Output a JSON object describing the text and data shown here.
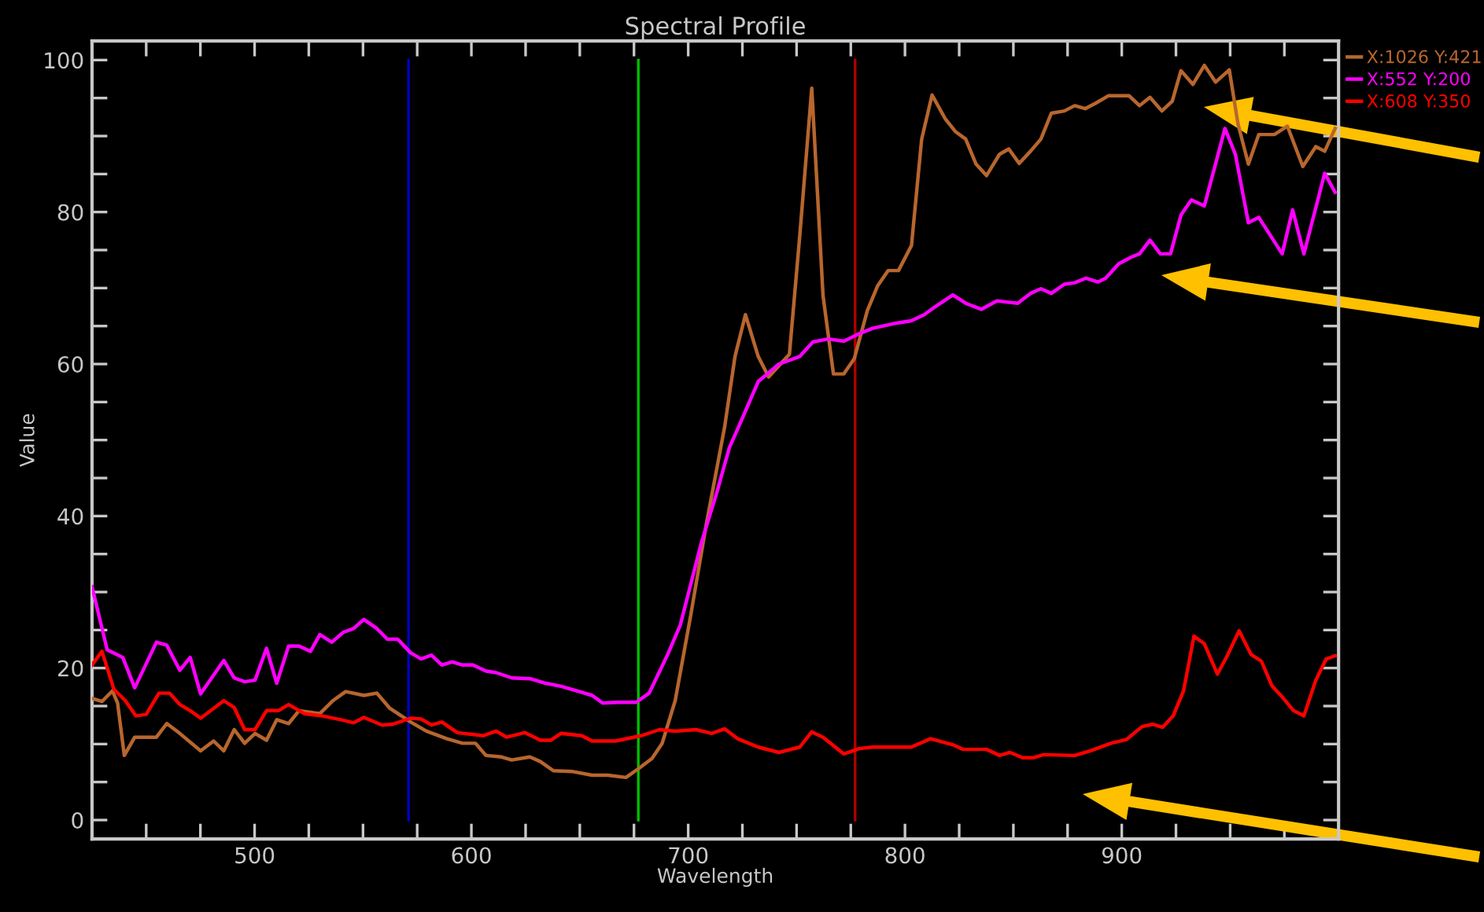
{
  "chart_data": {
    "type": "line",
    "title": "Spectral Profile",
    "xlabel": "Wavelength",
    "ylabel": "Value",
    "xlim": [
      425,
      1000
    ],
    "ylim": [
      -2.5,
      102.5
    ],
    "xticks": [
      {
        "value": 450,
        "label": null
      },
      {
        "value": 475,
        "label": null
      },
      500,
      {
        "value": 525,
        "label": null
      },
      {
        "value": 550,
        "label": null
      },
      {
        "value": 575,
        "label": null
      },
      600,
      {
        "value": 625,
        "label": null
      },
      {
        "value": 650,
        "label": null
      },
      {
        "value": 675,
        "label": null
      },
      700,
      {
        "value": 725,
        "label": null
      },
      {
        "value": 750,
        "label": null
      },
      {
        "value": 775,
        "label": null
      },
      800,
      {
        "value": 825,
        "label": null
      },
      {
        "value": 850,
        "label": null
      },
      {
        "value": 875,
        "label": null
      },
      900,
      {
        "value": 925,
        "label": null
      },
      {
        "value": 950,
        "label": null
      },
      {
        "value": 975,
        "label": null
      }
    ],
    "yticks": [
      0,
      {
        "value": 5,
        "label": null
      },
      {
        "value": 10,
        "label": null
      },
      {
        "value": 15,
        "label": null
      },
      20,
      {
        "value": 25,
        "label": null
      },
      {
        "value": 30,
        "label": null
      },
      {
        "value": 35,
        "label": null
      },
      40,
      {
        "value": 45,
        "label": null
      },
      {
        "value": 50,
        "label": null
      },
      {
        "value": 55,
        "label": null
      },
      60,
      {
        "value": 65,
        "label": null
      },
      {
        "value": 70,
        "label": null
      },
      {
        "value": 75,
        "label": null
      },
      80,
      {
        "value": 85,
        "label": null
      },
      {
        "value": 90,
        "label": null
      },
      {
        "value": 95,
        "label": null
      },
      100
    ],
    "grid": false,
    "legend": "top right",
    "marker": "none",
    "line_style": "solid",
    "ref_lines": [
      {
        "axis": "x",
        "value": 571,
        "color": "#0000c0"
      },
      {
        "axis": "x",
        "value": 677,
        "color": "#00c000"
      },
      {
        "axis": "x",
        "value": 777,
        "color": "#b00000"
      }
    ],
    "series": [
      {
        "name": "X:1026 Y:421",
        "color": "#b8662e",
        "x": [
          425,
          429.6,
          434.4,
          436.8,
          439.9,
          444.7,
          454.7,
          459.5,
          465.5,
          475.1,
          481.1,
          485.8,
          490.6,
          495.4,
          500.2,
          505.5,
          510.2,
          515.7,
          520.5,
          530.1,
          536.1,
          542,
          550.4,
          556.4,
          562.4,
          572,
          579.2,
          588.7,
          595.9,
          601.9,
          606.7,
          613.9,
          618.6,
          627,
          631.8,
          637.8,
          646.2,
          655.7,
          662.9,
          671.3,
          676.8,
          683.3,
          688,
          694,
          701.2,
          708.4,
          716.8,
          721.6,
          726.4,
          732.3,
          737.1,
          746.7,
          751.5,
          757,
          762.2,
          767,
          771.8,
          776.6,
          782.6,
          787.4,
          792.2,
          797,
          803,
          807.7,
          812.5,
          818.5,
          823.2,
          828,
          832.8,
          837.6,
          843.6,
          847.9,
          852.7,
          857.9,
          862.7,
          867.5,
          873.5,
          878.3,
          883.1,
          887.8,
          893.8,
          903.4,
          908.2,
          913,
          918.5,
          923.3,
          927.3,
          932.8,
          938.1,
          943.3,
          949.6,
          953.6,
          958.4,
          963.2,
          970.4,
          976.4,
          983.5,
          989.5,
          993.6,
          998.4
        ],
        "values": [
          16.0,
          15.6,
          17.0,
          15.4,
          8.5,
          10.9,
          10.9,
          12.7,
          11.4,
          9.1,
          10.4,
          9.1,
          11.9,
          10.1,
          11.4,
          10.5,
          13.2,
          12.7,
          14.4,
          14.0,
          15.7,
          16.9,
          16.4,
          16.7,
          14.7,
          12.9,
          11.7,
          10.7,
          10.1,
          10.1,
          8.5,
          8.3,
          7.9,
          8.3,
          7.7,
          6.5,
          6.4,
          5.9,
          5.9,
          5.6,
          6.7,
          8.1,
          10.1,
          15.7,
          27.0,
          39.0,
          51.7,
          61.0,
          66.5,
          61.0,
          58.3,
          61.3,
          77.0,
          96.3,
          69.0,
          58.7,
          58.7,
          60.7,
          67.0,
          70.3,
          72.3,
          72.3,
          75.6,
          89.6,
          95.4,
          92.3,
          90.6,
          89.6,
          86.3,
          84.8,
          87.6,
          88.3,
          86.4,
          88.0,
          89.6,
          93.0,
          93.3,
          94.0,
          93.6,
          94.3,
          95.3,
          95.3,
          94.0,
          95.1,
          93.3,
          94.6,
          98.6,
          96.8,
          99.3,
          97.1,
          98.7,
          91.6,
          86.3,
          90.2,
          90.2,
          91.3,
          86.0,
          88.6,
          88.0,
          91.0
        ]
      },
      {
        "name": "X:552 Y:200",
        "color": "#ff00ff",
        "x": [
          425,
          432,
          439.2,
          444.7,
          454.7,
          459.5,
          465.5,
          470.3,
          475.1,
          485.8,
          490.6,
          495.4,
          500.2,
          505.5,
          510.2,
          515.7,
          520.5,
          525.8,
          530.1,
          535.6,
          540.9,
          545.7,
          550.4,
          556.4,
          561.2,
          566,
          572,
          576.8,
          581.6,
          586.4,
          591.1,
          595.9,
          600.7,
          606.7,
          611.4,
          618.6,
          627,
          634.2,
          641.3,
          648.5,
          655.7,
          660.5,
          667.7,
          676,
          682,
          690.4,
          696.4,
          706,
          713.1,
          719,
          725.2,
          732.3,
          741.9,
          751.5,
          757.5,
          764.6,
          771.8,
          779,
          785,
          794.5,
          802.9,
          808.9,
          813.7,
          822.1,
          828,
          835.2,
          842.4,
          852,
          857.9,
          862.7,
          867.5,
          873.5,
          878.3,
          883.5,
          889,
          892.6,
          898.6,
          904.6,
          908.2,
          913,
          917.8,
          922.5,
          927.3,
          932.1,
          938.1,
          947.6,
          952.4,
          958.4,
          963.2,
          974,
          978.8,
          984,
          993.6,
          998.4
        ],
        "values": [
          30.7,
          22.4,
          21.4,
          17.4,
          23.4,
          23.0,
          19.7,
          21.4,
          16.6,
          21.0,
          18.7,
          18.2,
          18.4,
          22.6,
          18.0,
          22.9,
          22.9,
          22.2,
          24.4,
          23.4,
          24.7,
          25.2,
          26.4,
          25.2,
          23.8,
          23.8,
          22.0,
          21.2,
          21.7,
          20.4,
          20.8,
          20.4,
          20.4,
          19.6,
          19.4,
          18.7,
          18.6,
          18.0,
          17.6,
          17.0,
          16.4,
          15.4,
          15.5,
          15.5,
          16.7,
          21.7,
          25.7,
          36.4,
          43.0,
          49.0,
          53.0,
          57.7,
          60.0,
          61.0,
          62.9,
          63.3,
          63.0,
          64.0,
          64.7,
          65.3,
          65.7,
          66.5,
          67.5,
          69.1,
          68.0,
          67.2,
          68.3,
          68.0,
          69.3,
          69.9,
          69.3,
          70.5,
          70.7,
          71.3,
          70.8,
          71.3,
          73.2,
          74.1,
          74.5,
          76.3,
          74.5,
          74.5,
          79.6,
          81.6,
          80.8,
          91.0,
          87.6,
          78.6,
          79.3,
          74.5,
          80.3,
          74.5,
          85.1,
          82.6
        ]
      },
      {
        "name": "X:608 Y:350",
        "color": "#ff0000",
        "x": [
          425,
          429.6,
          435.1,
          440.4,
          445.2,
          450,
          455.9,
          460.7,
          465.5,
          470.3,
          475.1,
          485.8,
          490.6,
          495.4,
          500.2,
          505.5,
          511,
          515.7,
          522.9,
          531.3,
          539.7,
          545.7,
          550.4,
          558.8,
          563.6,
          572,
          576.8,
          581.6,
          586.4,
          593.5,
          605.5,
          611.4,
          616.2,
          624.6,
          631.8,
          636.6,
          641.3,
          650.9,
          655.7,
          666.5,
          678.4,
          686.8,
          694,
          703.6,
          710.8,
          716.8,
          722.8,
          732.3,
          741.9,
          751.5,
          757,
          762.2,
          771.8,
          779,
          785,
          802.9,
          811.8,
          822.1,
          826.8,
          837.6,
          843.6,
          848.4,
          854.3,
          859.1,
          863.9,
          878.3,
          885.4,
          895,
          902.2,
          909.4,
          914.2,
          918.9,
          923.7,
          928.5,
          933.3,
          938.1,
          944.1,
          948.8,
          954.1,
          959.6,
          964.4,
          969.2,
          974,
          979.2,
          984,
          989.5,
          994.3,
          998.4
        ],
        "values": [
          20.4,
          22.2,
          17.2,
          15.7,
          13.7,
          13.9,
          16.7,
          16.7,
          15.2,
          14.4,
          13.4,
          15.7,
          14.8,
          11.9,
          11.9,
          14.4,
          14.4,
          15.2,
          14.0,
          13.7,
          13.2,
          12.8,
          13.5,
          12.5,
          12.6,
          13.4,
          13.3,
          12.5,
          12.9,
          11.5,
          11.1,
          11.7,
          10.9,
          11.5,
          10.5,
          10.5,
          11.4,
          11.1,
          10.4,
          10.4,
          11.1,
          11.9,
          11.7,
          11.9,
          11.4,
          12.0,
          10.7,
          9.6,
          8.9,
          9.6,
          11.6,
          10.9,
          8.7,
          9.4,
          9.6,
          9.6,
          10.7,
          9.9,
          9.3,
          9.3,
          8.5,
          8.9,
          8.2,
          8.2,
          8.6,
          8.5,
          9.1,
          10.1,
          10.6,
          12.3,
          12.6,
          12.2,
          13.7,
          17.0,
          24.2,
          23.2,
          19.2,
          21.7,
          24.9,
          21.8,
          20.9,
          17.7,
          16.2,
          14.4,
          13.7,
          18.4,
          21.2,
          21.6
        ]
      }
    ]
  }
}
